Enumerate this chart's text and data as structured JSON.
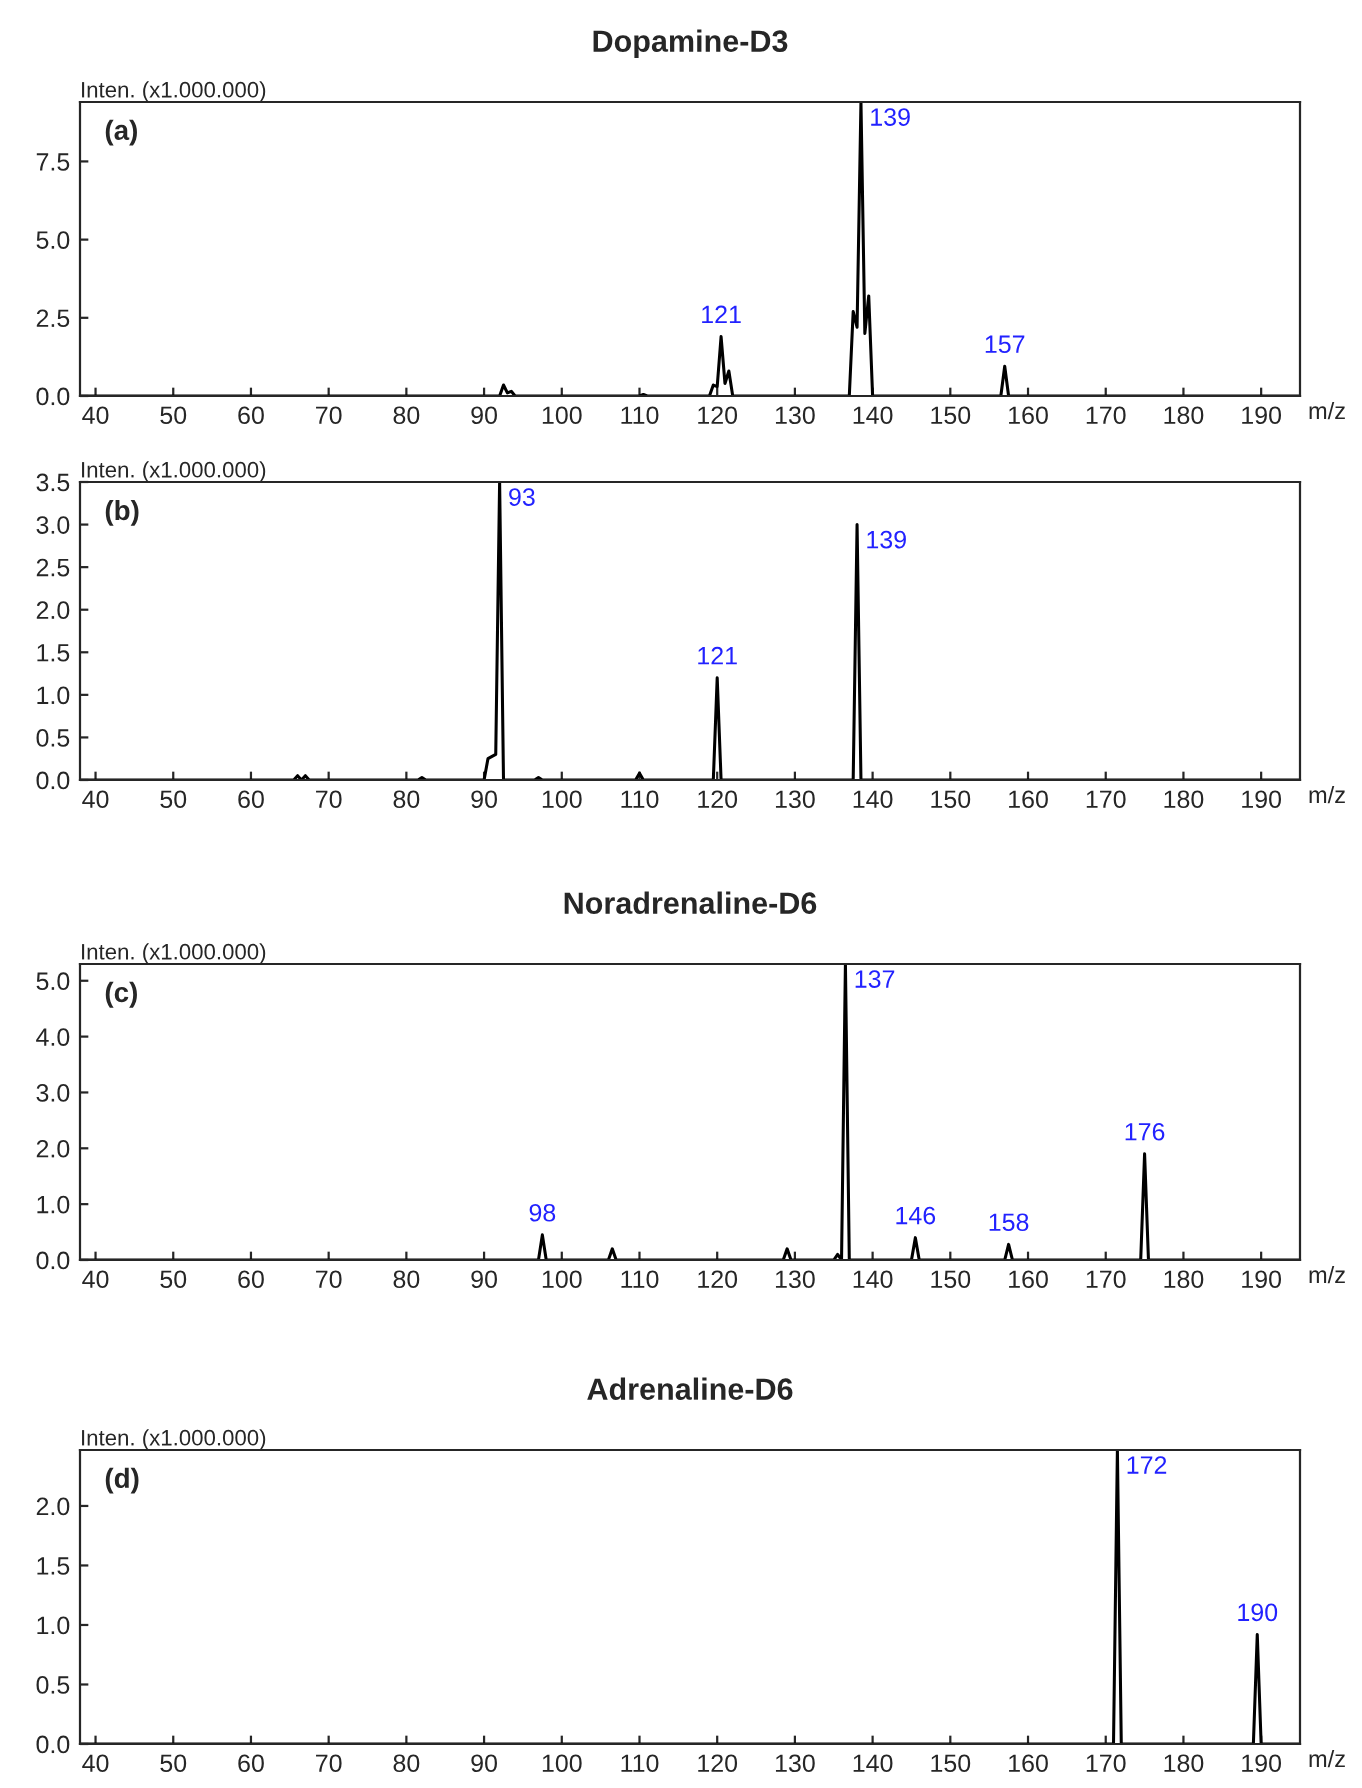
{
  "chart_data": [
    {
      "type": "line",
      "title": "Dopamine-D3",
      "ylabel": "Inten. (x1.000.000)",
      "xlabel": "m/z",
      "xlim": [
        38,
        195
      ],
      "ylim": [
        0,
        9.4
      ],
      "xticks": [
        40,
        50,
        60,
        70,
        80,
        90,
        100,
        110,
        120,
        130,
        140,
        150,
        160,
        170,
        180,
        190
      ],
      "yticks": [
        {
          "value": 0,
          "label": "0.0"
        },
        {
          "value": 2.5,
          "label": "2.5"
        },
        {
          "value": 5,
          "label": "5.0"
        },
        {
          "value": 7.5,
          "label": "7.5"
        }
      ],
      "grid": false,
      "legend": false,
      "series": [
        {
          "color": "#000000",
          "x": [
            38,
            92,
            92.5,
            93,
            93.5,
            94,
            110,
            110.5,
            111,
            119,
            119.5,
            120,
            120.5,
            121,
            121.5,
            122,
            137,
            137.5,
            138,
            138.5,
            139,
            139.5,
            140,
            156.5,
            157,
            157.5,
            195
          ],
          "values": [
            0,
            0,
            0.35,
            0.1,
            0.15,
            0,
            0,
            0.05,
            0,
            0,
            0.35,
            0.3,
            1.9,
            0.4,
            0.8,
            0,
            0,
            2.7,
            2.2,
            9.4,
            2.0,
            3.2,
            0,
            0,
            0.95,
            0,
            0
          ]
        }
      ],
      "annotations": [
        "(a)",
        {
          "text": "121",
          "x": 120.5,
          "y": 1.9
        },
        {
          "text": "139",
          "x": 138.5,
          "y": 9.4
        },
        {
          "text": "157",
          "x": 157,
          "y": 0.95
        }
      ]
    },
    {
      "type": "line",
      "ylabel": "Inten. (x1.000.000)",
      "xlabel": "m/z",
      "xlim": [
        38,
        195
      ],
      "ylim": [
        0,
        3.5
      ],
      "xticks": [
        40,
        50,
        60,
        70,
        80,
        90,
        100,
        110,
        120,
        130,
        140,
        150,
        160,
        170,
        180,
        190
      ],
      "yticks": [
        {
          "value": 0,
          "label": "0.0"
        },
        {
          "value": 0.5,
          "label": "0.5"
        },
        {
          "value": 1,
          "label": "1.0"
        },
        {
          "value": 1.5,
          "label": "1.5"
        },
        {
          "value": 2,
          "label": "2.0"
        },
        {
          "value": 2.5,
          "label": "2.5"
        },
        {
          "value": 3,
          "label": "3.0"
        },
        {
          "value": 3.5,
          "label": "3.5"
        }
      ],
      "grid": false,
      "legend": false,
      "series": [
        {
          "color": "#000000",
          "x": [
            38,
            65.5,
            66,
            66.5,
            67,
            67.5,
            81.5,
            82,
            82.5,
            90,
            90.5,
            91.5,
            92,
            92.5,
            96.5,
            97,
            97.5,
            109.5,
            110,
            110.5,
            119.5,
            120,
            120.5,
            137.5,
            138,
            138.5,
            195
          ],
          "values": [
            0,
            0,
            0.05,
            0,
            0.05,
            0,
            0,
            0.03,
            0,
            0,
            0.25,
            0.3,
            3.5,
            0,
            0,
            0.03,
            0,
            0,
            0.08,
            0,
            0,
            1.2,
            0,
            0,
            3.0,
            0,
            0
          ]
        }
      ],
      "annotations": [
        "(b)",
        {
          "text": "93",
          "x": 92,
          "y": 3.5
        },
        {
          "text": "121",
          "x": 120,
          "y": 1.2
        },
        {
          "text": "139",
          "x": 138,
          "y": 3.0
        }
      ]
    },
    {
      "type": "line",
      "title": "Noradrenaline-D6",
      "ylabel": "Inten. (x1.000.000)",
      "xlabel": "m/z",
      "xlim": [
        38,
        195
      ],
      "ylim": [
        0,
        5.3
      ],
      "xticks": [
        40,
        50,
        60,
        70,
        80,
        90,
        100,
        110,
        120,
        130,
        140,
        150,
        160,
        170,
        180,
        190
      ],
      "yticks": [
        {
          "value": 0,
          "label": "0.0"
        },
        {
          "value": 1,
          "label": "1.0"
        },
        {
          "value": 2,
          "label": "2.0"
        },
        {
          "value": 3,
          "label": "3.0"
        },
        {
          "value": 4,
          "label": "4.0"
        },
        {
          "value": 5,
          "label": "5.0"
        }
      ],
      "grid": false,
      "legend": false,
      "series": [
        {
          "color": "#000000",
          "x": [
            38,
            97,
            97.5,
            98,
            106,
            106.5,
            107,
            128.5,
            129,
            129.5,
            135,
            135.5,
            136,
            136.5,
            137,
            145,
            145.5,
            146,
            157,
            157.5,
            158,
            174.5,
            175,
            175.5,
            195
          ],
          "values": [
            0,
            0,
            0.45,
            0,
            0,
            0.2,
            0,
            0,
            0.2,
            0,
            0,
            0.1,
            0,
            5.3,
            0,
            0,
            0.4,
            0,
            0,
            0.28,
            0,
            0,
            1.9,
            0,
            0
          ]
        }
      ],
      "annotations": [
        "(c)",
        {
          "text": "98",
          "x": 97.5,
          "y": 0.45
        },
        {
          "text": "137",
          "x": 136.5,
          "y": 5.3
        },
        {
          "text": "146",
          "x": 145.5,
          "y": 0.4
        },
        {
          "text": "158",
          "x": 157.5,
          "y": 0.28
        },
        {
          "text": "176",
          "x": 175,
          "y": 1.9
        }
      ]
    },
    {
      "type": "line",
      "title": "Adrenaline-D6",
      "ylabel": "Inten. (x1.000.000)",
      "xlabel": "m/z",
      "xlim": [
        38,
        195
      ],
      "ylim": [
        0,
        2.47
      ],
      "xticks": [
        40,
        50,
        60,
        70,
        80,
        90,
        100,
        110,
        120,
        130,
        140,
        150,
        160,
        170,
        180,
        190
      ],
      "yticks": [
        {
          "value": 0,
          "label": "0.0"
        },
        {
          "value": 0.5,
          "label": "0.5"
        },
        {
          "value": 1,
          "label": "1.0"
        },
        {
          "value": 1.5,
          "label": "1.5"
        },
        {
          "value": 2,
          "label": "2.0"
        }
      ],
      "grid": false,
      "legend": false,
      "series": [
        {
          "color": "#000000",
          "x": [
            38,
            171,
            171.5,
            172,
            189,
            189.5,
            190,
            195
          ],
          "values": [
            0,
            0,
            2.47,
            0,
            0,
            0.92,
            0,
            0
          ]
        }
      ],
      "annotations": [
        "(d)",
        {
          "text": "172",
          "x": 171.5,
          "y": 2.47
        },
        {
          "text": "190",
          "x": 189.5,
          "y": 0.92
        }
      ]
    }
  ]
}
